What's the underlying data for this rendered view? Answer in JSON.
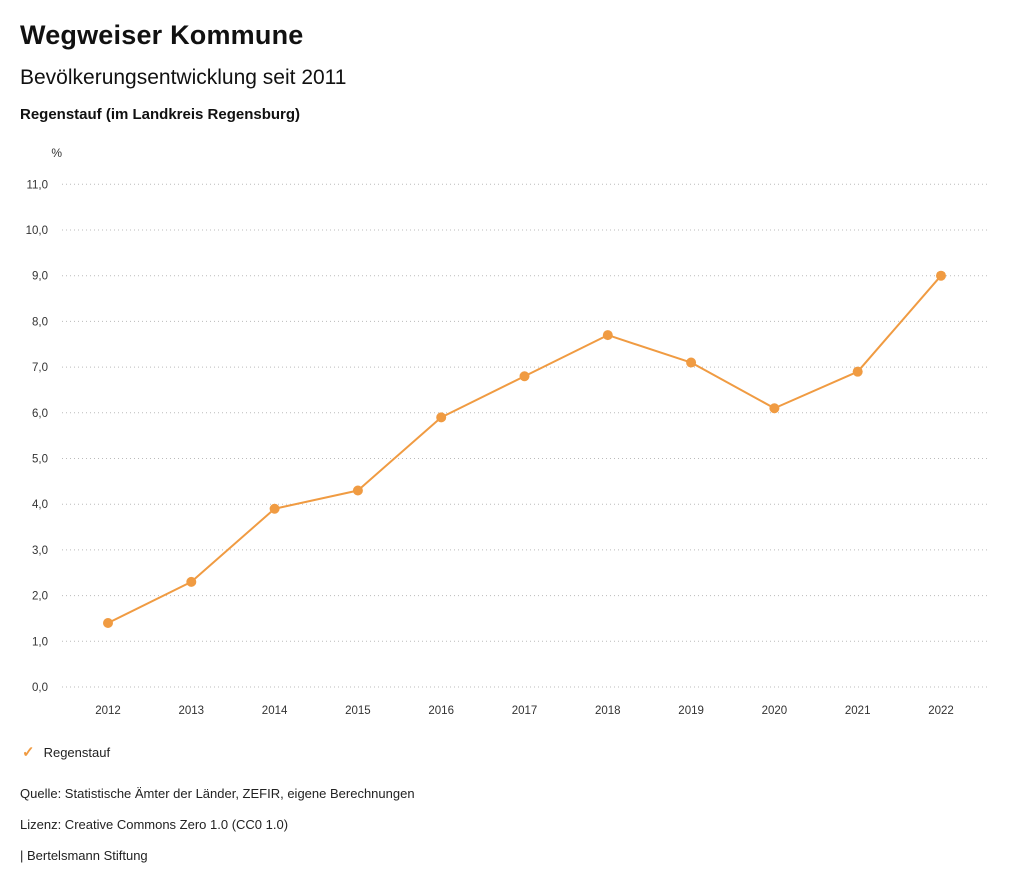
{
  "header": {
    "title": "Wegweiser Kommune",
    "subtitle": "Bevölkerungsentwicklung seit 2011",
    "region": "Regenstauf (im Landkreis Regensburg)"
  },
  "legend": {
    "label": "Regenstauf",
    "checkmark": "✓"
  },
  "footer": {
    "source": "Quelle: Statistische Ämter der Länder, ZEFIR, eigene Berechnungen",
    "license": "Lizenz: Creative Commons Zero 1.0 (CC0 1.0)",
    "attribution": "| Bertelsmann Stiftung"
  },
  "colors": {
    "series": "#F09B42",
    "grid": "#bbbbbb",
    "axis_text": "#333333"
  },
  "chart_data": {
    "type": "line",
    "title": "Bevölkerungsentwicklung seit 2011",
    "xlabel": "",
    "ylabel": "%",
    "categories": [
      "2012",
      "2013",
      "2014",
      "2015",
      "2016",
      "2017",
      "2018",
      "2019",
      "2020",
      "2021",
      "2022"
    ],
    "series": [
      {
        "name": "Regenstauf",
        "values": [
          1.4,
          2.3,
          3.9,
          4.3,
          5.9,
          6.8,
          7.7,
          7.1,
          6.1,
          6.9,
          9.0
        ]
      }
    ],
    "ylim": [
      0,
      11
    ],
    "ytick_step": 1,
    "ytick_labels": [
      "0,0",
      "1,0",
      "2,0",
      "3,0",
      "4,0",
      "5,0",
      "6,0",
      "7,0",
      "8,0",
      "9,0",
      "10,0",
      "11,0"
    ],
    "grid": "dotted-horizontal",
    "legend_position": "bottom-left",
    "marker": "circle"
  }
}
